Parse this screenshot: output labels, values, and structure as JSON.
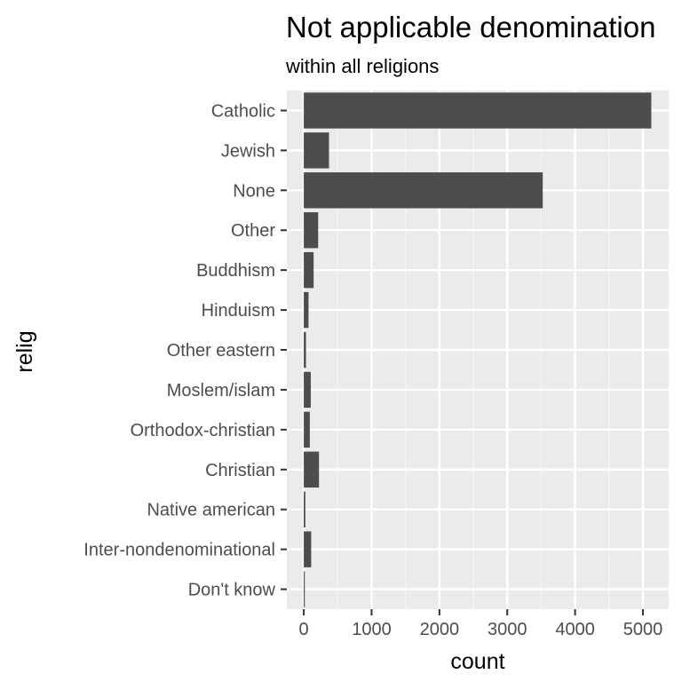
{
  "chart_data": {
    "type": "bar",
    "orientation": "horizontal",
    "title": "Not applicable denomination",
    "subtitle": "within all religions",
    "xlabel": "count",
    "ylabel": "relig",
    "categories": [
      "Catholic",
      "Jewish",
      "None",
      "Other",
      "Buddhism",
      "Hinduism",
      "Other eastern",
      "Moslem/islam",
      "Orthodox-christian",
      "Christian",
      "Native american",
      "Inter-nondenominational",
      "Don't know"
    ],
    "values": [
      5124,
      372,
      3523,
      212,
      145,
      70,
      32,
      103,
      89,
      224,
      23,
      109,
      15
    ],
    "xlim": [
      -250,
      5380
    ],
    "xticks": [
      0,
      1000,
      2000,
      3000,
      4000,
      5000
    ],
    "xtick_labels": [
      "0",
      "1000",
      "2000",
      "3000",
      "4000",
      "5000"
    ],
    "grid": true,
    "colors": {
      "bar": "#4d4d4d",
      "panel": "#ebebeb",
      "grid_major": "#ffffff",
      "grid_minor": "#f5f5f5"
    }
  }
}
